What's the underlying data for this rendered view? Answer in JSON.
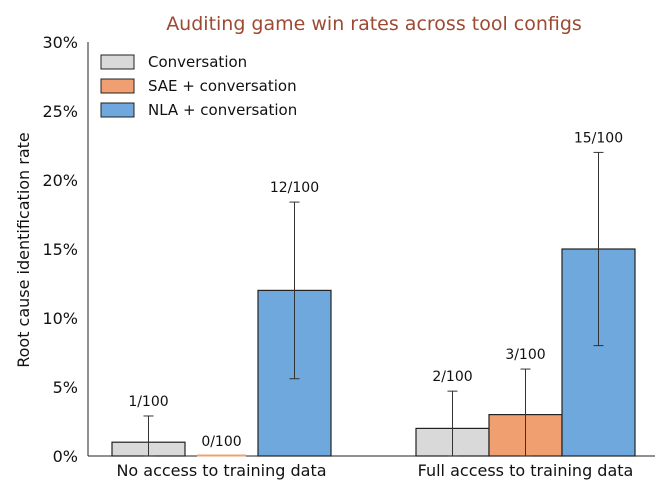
{
  "chart_data": {
    "type": "bar",
    "title": "Auditing game win rates across tool configs",
    "xlabel": "",
    "ylabel": "Root cause identification rate",
    "ylim": [
      0,
      30
    ],
    "yticks": [
      "0%",
      "5%",
      "10%",
      "15%",
      "20%",
      "25%",
      "30%"
    ],
    "ytick_values": [
      0,
      5,
      10,
      15,
      20,
      25,
      30
    ],
    "categories": [
      "No access to training data",
      "Full access to training data"
    ],
    "legend_position": "top-left",
    "series": [
      {
        "name": "Conversation",
        "color": "#d9d9d9",
        "values": [
          1,
          2
        ],
        "error_low": [
          0,
          0
        ],
        "error_high": [
          2.9,
          4.7
        ],
        "labels": [
          "1/100",
          "2/100"
        ]
      },
      {
        "name": "SAE + conversation",
        "color": "#f0a070",
        "values": [
          0,
          3
        ],
        "error_low": [
          0,
          0
        ],
        "error_high": [
          0,
          6.3
        ],
        "labels": [
          "0/100",
          "3/100"
        ]
      },
      {
        "name": "NLA + conversation",
        "color": "#6fa8dc",
        "values": [
          12,
          15
        ],
        "error_low": [
          5.6,
          8
        ],
        "error_high": [
          18.4,
          22
        ],
        "labels": [
          "12/100",
          "15/100"
        ]
      }
    ]
  }
}
